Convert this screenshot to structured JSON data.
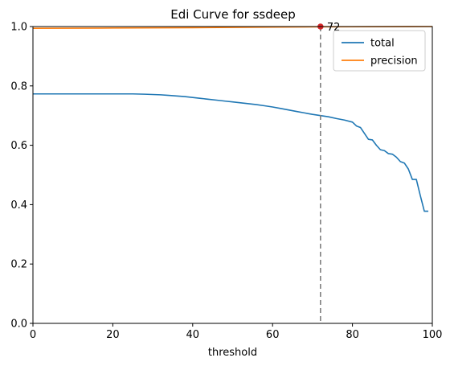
{
  "chart_data": {
    "type": "line",
    "title": "Edi Curve for ssdeep",
    "xlabel": "threshold",
    "ylabel": "",
    "xlim": [
      0,
      100
    ],
    "ylim": [
      0.0,
      1.0
    ],
    "xticks": [
      "0",
      "20",
      "40",
      "60",
      "80",
      "100"
    ],
    "yticks": [
      "0.0",
      "0.2",
      "0.4",
      "0.6",
      "0.8",
      "1.0"
    ],
    "legend_position": "top-right",
    "grid": false,
    "series": [
      {
        "name": "total",
        "color": "#1f77b4",
        "x": [
          0,
          5,
          10,
          15,
          20,
          25,
          28,
          30,
          32,
          34,
          36,
          38,
          40,
          42,
          44,
          46,
          48,
          50,
          52,
          54,
          56,
          58,
          60,
          62,
          64,
          66,
          68,
          70,
          72,
          74,
          76,
          78,
          80,
          81,
          82,
          83,
          84,
          85,
          86,
          87,
          88,
          89,
          90,
          91,
          92,
          93,
          94,
          95,
          96,
          97,
          98,
          99
        ],
        "values": [
          0.773,
          0.773,
          0.773,
          0.773,
          0.773,
          0.773,
          0.772,
          0.771,
          0.77,
          0.768,
          0.766,
          0.764,
          0.761,
          0.758,
          0.755,
          0.752,
          0.749,
          0.746,
          0.743,
          0.74,
          0.737,
          0.733,
          0.729,
          0.724,
          0.719,
          0.714,
          0.709,
          0.704,
          0.7,
          0.696,
          0.69,
          0.685,
          0.678,
          0.665,
          0.66,
          0.64,
          0.62,
          0.618,
          0.6,
          0.585,
          0.582,
          0.572,
          0.57,
          0.56,
          0.545,
          0.54,
          0.52,
          0.485,
          0.485,
          0.43,
          0.378,
          0.378
        ]
      },
      {
        "name": "precision",
        "color": "#ff7f0e",
        "x": [
          0,
          20,
          40,
          60,
          72,
          100
        ],
        "values": [
          0.994,
          0.995,
          0.996,
          0.998,
          0.999,
          1.0
        ]
      }
    ],
    "annotations": [
      {
        "x": 72,
        "y": 1.0,
        "label": "72",
        "marker_color": "#d62728",
        "vline": true,
        "vline_color": "#7f7f7f"
      }
    ]
  }
}
